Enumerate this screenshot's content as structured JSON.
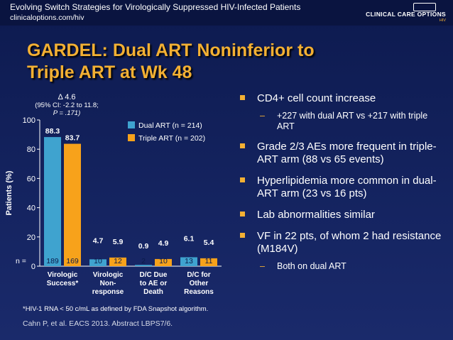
{
  "header": {
    "title": "Evolving Switch Strategies for Virologically Suppressed HIV-Infected Patients",
    "url": "clinicaloptions.com/hiv",
    "logo_text": "CLINICAL CARE OPTIONS",
    "logo_sub": "HIV"
  },
  "slide": {
    "title_line1": "GARDEL: Dual ART Noninferior to",
    "title_line2": "Triple ART at Wk 48"
  },
  "colors": {
    "dual": "#3fa3cf",
    "triple": "#f7a21b",
    "title": "#f3b033"
  },
  "chart_data": {
    "type": "bar",
    "ylabel": "Patients (%)",
    "ylim": [
      0,
      100
    ],
    "yticks": [
      "0",
      "20",
      "40",
      "60",
      "80",
      "100"
    ],
    "categories": [
      [
        "Virologic",
        "Success*"
      ],
      [
        "Virologic",
        "Non-",
        "response"
      ],
      [
        "D/C Due",
        "to AE or",
        "Death"
      ],
      [
        "D/C for",
        "Other",
        "Reasons"
      ]
    ],
    "series": [
      {
        "name": "Dual ART (n = 214)",
        "values": [
          88.3,
          4.7,
          0.9,
          6.1
        ],
        "labels": [
          "88.3",
          "4.7",
          "0.9",
          "6.1"
        ],
        "n": [
          "189",
          "10",
          "2",
          "13"
        ]
      },
      {
        "name": "Triple ART (n = 202)",
        "values": [
          83.7,
          5.9,
          4.9,
          5.4
        ],
        "labels": [
          "83.7",
          "5.9",
          "4.9",
          "5.4"
        ],
        "n": [
          "169",
          "12",
          "10",
          "11"
        ]
      }
    ],
    "n_label": "n =",
    "annotation": [
      "Δ 4.6",
      "(95% CI: -2.2 to 11.8;",
      "P = .171)"
    ]
  },
  "footnote": "*HIV-1 RNA < 50 c/mL as defined by FDA Snapshot algorithm.",
  "citation": "Cahn P, et al. EACS 2013. Abstract LBPS7/6.",
  "bullets": [
    {
      "text": "CD4+ cell count increase",
      "sub": [
        "+227 with dual ART vs +217 with triple ART"
      ]
    },
    {
      "text": "Grade 2/3 AEs more frequent in triple-ART arm (88 vs 65 events)",
      "sub": []
    },
    {
      "text": "Hyperlipidemia more common in dual-ART arm (23 vs 16 pts)",
      "sub": []
    },
    {
      "text": "Lab abnormalities similar",
      "sub": []
    },
    {
      "text": "VF in 22 pts, of whom 2 had resistance (M184V)",
      "sub": [
        "Both on dual ART"
      ]
    }
  ]
}
